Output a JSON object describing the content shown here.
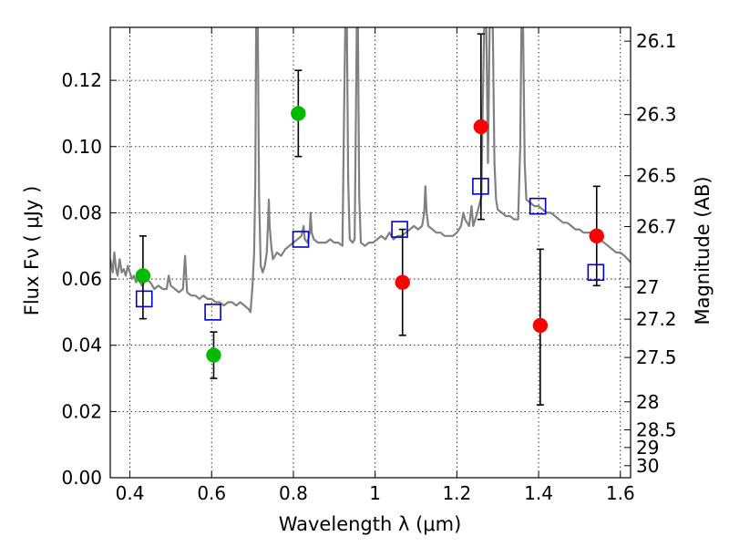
{
  "chart_data": {
    "type": "scatter",
    "xlabel": "Wavelength  λ (μm)",
    "ylabel": "Flux  Fν  ( μJy )",
    "y2label": "Magnitude (AB)",
    "xlim": [
      0.352,
      1.625
    ],
    "ylim": [
      0.0,
      0.136
    ],
    "grid": true,
    "legend": "none",
    "x_ticks": [
      {
        "value": 0.4,
        "label": "0.4"
      },
      {
        "value": 0.6,
        "label": "0.6"
      },
      {
        "value": 0.8,
        "label": "0.8"
      },
      {
        "value": 1.0,
        "label": "1"
      },
      {
        "value": 1.2,
        "label": "1.2"
      },
      {
        "value": 1.4,
        "label": "1.4"
      },
      {
        "value": 1.6,
        "label": "1.6"
      }
    ],
    "y_ticks": [
      {
        "value": 0.0,
        "label": "0.00"
      },
      {
        "value": 0.02,
        "label": "0.02"
      },
      {
        "value": 0.04,
        "label": "0.04"
      },
      {
        "value": 0.06,
        "label": "0.06"
      },
      {
        "value": 0.08,
        "label": "0.08"
      },
      {
        "value": 0.1,
        "label": "0.10"
      },
      {
        "value": 0.12,
        "label": "0.12"
      }
    ],
    "y2_ticks": [
      {
        "value": 26.1,
        "label": "26.1"
      },
      {
        "value": 26.3,
        "label": "26.3"
      },
      {
        "value": 26.5,
        "label": "26.5"
      },
      {
        "value": 26.7,
        "label": "26.7"
      },
      {
        "value": 27.0,
        "label": "27"
      },
      {
        "value": 27.2,
        "label": "27.2"
      },
      {
        "value": 27.5,
        "label": "27.5"
      },
      {
        "value": 28.0,
        "label": "28"
      },
      {
        "value": 28.5,
        "label": "28.5"
      },
      {
        "value": 29.0,
        "label": "29"
      },
      {
        "value": 30.0,
        "label": "30"
      }
    ],
    "colors": {
      "spectrum": "#808080",
      "green_points": "#00bb00",
      "red_points": "#ff0000",
      "model_squares": "#0000cc",
      "error_bars": "#000000",
      "grid": "#000000"
    },
    "series": [
      {
        "kind": "spectrum",
        "points": [
          [
            0.352,
            0.066
          ],
          [
            0.358,
            0.062
          ],
          [
            0.362,
            0.068
          ],
          [
            0.366,
            0.063
          ],
          [
            0.37,
            0.061
          ],
          [
            0.375,
            0.066
          ],
          [
            0.38,
            0.062
          ],
          [
            0.385,
            0.063
          ],
          [
            0.39,
            0.061
          ],
          [
            0.395,
            0.064
          ],
          [
            0.4,
            0.062
          ],
          [
            0.405,
            0.06
          ],
          [
            0.41,
            0.061
          ],
          [
            0.415,
            0.059
          ],
          [
            0.42,
            0.06
          ],
          [
            0.43,
            0.058
          ],
          [
            0.44,
            0.06
          ],
          [
            0.45,
            0.059
          ],
          [
            0.46,
            0.057
          ],
          [
            0.47,
            0.058
          ],
          [
            0.48,
            0.057
          ],
          [
            0.49,
            0.057
          ],
          [
            0.495,
            0.061
          ],
          [
            0.5,
            0.058
          ],
          [
            0.51,
            0.057
          ],
          [
            0.52,
            0.056
          ],
          [
            0.53,
            0.057
          ],
          [
            0.535,
            0.067
          ],
          [
            0.54,
            0.056
          ],
          [
            0.55,
            0.055
          ],
          [
            0.56,
            0.055
          ],
          [
            0.57,
            0.054
          ],
          [
            0.58,
            0.055
          ],
          [
            0.59,
            0.054
          ],
          [
            0.6,
            0.054
          ],
          [
            0.61,
            0.053
          ],
          [
            0.62,
            0.053
          ],
          [
            0.63,
            0.052
          ],
          [
            0.64,
            0.053
          ],
          [
            0.65,
            0.053
          ],
          [
            0.66,
            0.052
          ],
          [
            0.67,
            0.053
          ],
          [
            0.68,
            0.052
          ],
          [
            0.69,
            0.051
          ],
          [
            0.695,
            0.05
          ],
          [
            0.7,
            0.058
          ],
          [
            0.704,
            0.068
          ],
          [
            0.707,
            0.09
          ],
          [
            0.709,
            0.136
          ],
          [
            0.713,
            0.136
          ],
          [
            0.716,
            0.085
          ],
          [
            0.72,
            0.064
          ],
          [
            0.725,
            0.062
          ],
          [
            0.73,
            0.064
          ],
          [
            0.735,
            0.068
          ],
          [
            0.738,
            0.077
          ],
          [
            0.74,
            0.084
          ],
          [
            0.742,
            0.076
          ],
          [
            0.746,
            0.07
          ],
          [
            0.75,
            0.066
          ],
          [
            0.76,
            0.068
          ],
          [
            0.77,
            0.067
          ],
          [
            0.78,
            0.069
          ],
          [
            0.79,
            0.07
          ],
          [
            0.8,
            0.071
          ],
          [
            0.81,
            0.072
          ],
          [
            0.82,
            0.073
          ],
          [
            0.825,
            0.076
          ],
          [
            0.828,
            0.072
          ],
          [
            0.835,
            0.071
          ],
          [
            0.84,
            0.074
          ],
          [
            0.842,
            0.08
          ],
          [
            0.845,
            0.074
          ],
          [
            0.85,
            0.072
          ],
          [
            0.86,
            0.071
          ],
          [
            0.87,
            0.071
          ],
          [
            0.88,
            0.071
          ],
          [
            0.89,
            0.072
          ],
          [
            0.9,
            0.071
          ],
          [
            0.91,
            0.071
          ],
          [
            0.92,
            0.07
          ],
          [
            0.924,
            0.11
          ],
          [
            0.927,
            0.136
          ],
          [
            0.931,
            0.136
          ],
          [
            0.934,
            0.09
          ],
          [
            0.938,
            0.072
          ],
          [
            0.945,
            0.071
          ],
          [
            0.95,
            0.072
          ],
          [
            0.953,
            0.11
          ],
          [
            0.955,
            0.136
          ],
          [
            0.958,
            0.136
          ],
          [
            0.961,
            0.085
          ],
          [
            0.965,
            0.071
          ],
          [
            0.975,
            0.07
          ],
          [
            0.985,
            0.071
          ],
          [
            0.995,
            0.071
          ],
          [
            1.005,
            0.072
          ],
          [
            1.015,
            0.073
          ],
          [
            1.025,
            0.072
          ],
          [
            1.035,
            0.074
          ],
          [
            1.045,
            0.072
          ],
          [
            1.055,
            0.073
          ],
          [
            1.065,
            0.073
          ],
          [
            1.075,
            0.074
          ],
          [
            1.085,
            0.075
          ],
          [
            1.095,
            0.076
          ],
          [
            1.105,
            0.075
          ],
          [
            1.115,
            0.076
          ],
          [
            1.12,
            0.08
          ],
          [
            1.123,
            0.088
          ],
          [
            1.126,
            0.08
          ],
          [
            1.13,
            0.076
          ],
          [
            1.14,
            0.075
          ],
          [
            1.15,
            0.074
          ],
          [
            1.16,
            0.074
          ],
          [
            1.17,
            0.073
          ],
          [
            1.18,
            0.073
          ],
          [
            1.19,
            0.073
          ],
          [
            1.2,
            0.074
          ],
          [
            1.21,
            0.076
          ],
          [
            1.216,
            0.08
          ],
          [
            1.22,
            0.078
          ],
          [
            1.23,
            0.076
          ],
          [
            1.236,
            0.082
          ],
          [
            1.24,
            0.076
          ],
          [
            1.25,
            0.08
          ],
          [
            1.26,
            0.085
          ],
          [
            1.263,
            0.11
          ],
          [
            1.267,
            0.136
          ],
          [
            1.272,
            0.136
          ],
          [
            1.276,
            0.095
          ],
          [
            1.28,
            0.136
          ],
          [
            1.288,
            0.136
          ],
          [
            1.292,
            0.095
          ],
          [
            1.296,
            0.084
          ],
          [
            1.3,
            0.081
          ],
          [
            1.31,
            0.08
          ],
          [
            1.32,
            0.079
          ],
          [
            1.33,
            0.079
          ],
          [
            1.34,
            0.078
          ],
          [
            1.35,
            0.078
          ],
          [
            1.355,
            0.1
          ],
          [
            1.358,
            0.136
          ],
          [
            1.362,
            0.136
          ],
          [
            1.366,
            0.095
          ],
          [
            1.37,
            0.084
          ],
          [
            1.38,
            0.083
          ],
          [
            1.39,
            0.082
          ],
          [
            1.4,
            0.082
          ],
          [
            1.41,
            0.081
          ],
          [
            1.42,
            0.08
          ],
          [
            1.43,
            0.08
          ],
          [
            1.44,
            0.079
          ],
          [
            1.45,
            0.078
          ],
          [
            1.46,
            0.077
          ],
          [
            1.47,
            0.077
          ],
          [
            1.48,
            0.076
          ],
          [
            1.49,
            0.075
          ],
          [
            1.5,
            0.075
          ],
          [
            1.51,
            0.074
          ],
          [
            1.52,
            0.074
          ],
          [
            1.53,
            0.074
          ],
          [
            1.54,
            0.073
          ],
          [
            1.55,
            0.072
          ],
          [
            1.56,
            0.071
          ],
          [
            1.57,
            0.07
          ],
          [
            1.58,
            0.069
          ],
          [
            1.59,
            0.068
          ],
          [
            1.6,
            0.068
          ],
          [
            1.61,
            0.067
          ],
          [
            1.618,
            0.066
          ],
          [
            1.625,
            0.065
          ]
        ]
      },
      {
        "kind": "observed",
        "marker": "circle",
        "color_key": "green_points",
        "points": [
          {
            "x": 0.432,
            "y": 0.061,
            "err_low": 0.048,
            "err_high": 0.073
          },
          {
            "x": 0.605,
            "y": 0.037,
            "err_low": 0.03,
            "err_high": 0.044
          },
          {
            "x": 0.812,
            "y": 0.11,
            "err_low": 0.097,
            "err_high": 0.123
          }
        ]
      },
      {
        "kind": "observed",
        "marker": "circle",
        "color_key": "red_points",
        "points": [
          {
            "x": 1.067,
            "y": 0.059,
            "err_low": 0.043,
            "err_high": 0.075
          },
          {
            "x": 1.259,
            "y": 0.106,
            "err_low": 0.078,
            "err_high": 0.134
          },
          {
            "x": 1.404,
            "y": 0.046,
            "err_low": 0.022,
            "err_high": 0.069
          },
          {
            "x": 1.542,
            "y": 0.073,
            "err_low": 0.058,
            "err_high": 0.088
          }
        ]
      },
      {
        "kind": "model",
        "marker": "square",
        "color_key": "model_squares",
        "points": [
          {
            "x": 0.435,
            "y": 0.054
          },
          {
            "x": 0.603,
            "y": 0.05
          },
          {
            "x": 0.818,
            "y": 0.072
          },
          {
            "x": 1.06,
            "y": 0.075
          },
          {
            "x": 1.258,
            "y": 0.088
          },
          {
            "x": 1.398,
            "y": 0.082
          },
          {
            "x": 1.54,
            "y": 0.062
          }
        ]
      }
    ]
  }
}
